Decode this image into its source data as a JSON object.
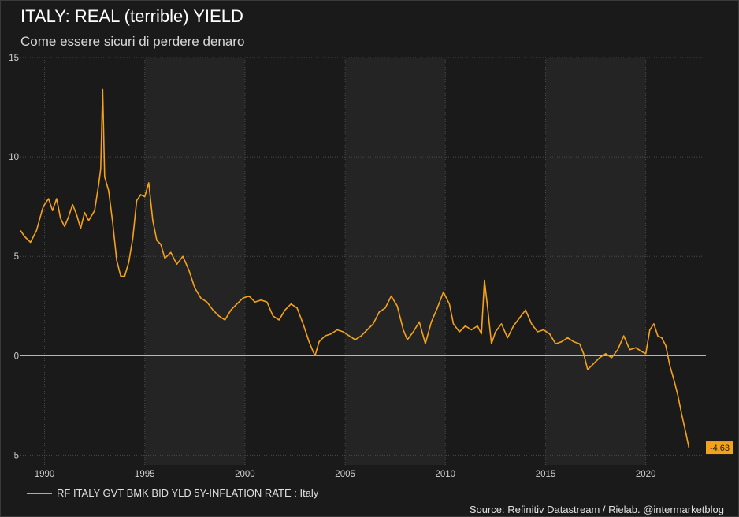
{
  "header": {
    "title": "ITALY: REAL (terrible) YIELD",
    "subtitle": "Come essere sicuri di perdere denaro"
  },
  "legend": {
    "label": "RF ITALY GVT BMK BID YLD 5Y-INFLATION RATE : Italy"
  },
  "footer": {
    "source": "Source: Refinitiv Datastream / Rielab. @intermarketblog"
  },
  "colors": {
    "line": "#f5a21b",
    "zero_line": "#e8e8e8",
    "band": "#242424",
    "background": "#1a1a1a",
    "grid": "#4a4a4a"
  },
  "chart_data": {
    "type": "line",
    "title": "ITALY: REAL (terrible) YIELD",
    "subtitle": "Come essere sicuri di perdere denaro",
    "xlabel": "",
    "ylabel": "",
    "xlim": [
      1988.8,
      2023.0
    ],
    "ylim": [
      -5.5,
      15
    ],
    "x_ticks": [
      1990,
      1995,
      2000,
      2005,
      2010,
      2015,
      2020
    ],
    "y_ticks": [
      -5,
      0,
      5,
      10,
      15
    ],
    "grid": true,
    "legend_position": "bottom-left",
    "last_value_label": "-4.63",
    "series": [
      {
        "name": "RF ITALY GVT BMK BID YLD 5Y-INFLATION RATE : Italy",
        "x": [
          1988.8,
          1989.0,
          1989.3,
          1989.6,
          1989.9,
          1990.0,
          1990.2,
          1990.4,
          1990.6,
          1990.8,
          1991.0,
          1991.2,
          1991.4,
          1991.6,
          1991.8,
          1992.0,
          1992.2,
          1992.5,
          1992.7,
          1992.8,
          1992.9,
          1993.0,
          1993.2,
          1993.4,
          1993.6,
          1993.8,
          1994.0,
          1994.2,
          1994.4,
          1994.6,
          1994.8,
          1995.0,
          1995.2,
          1995.4,
          1995.6,
          1995.8,
          1996.0,
          1996.3,
          1996.6,
          1996.9,
          1997.2,
          1997.5,
          1997.8,
          1998.1,
          1998.4,
          1998.7,
          1999.0,
          1999.3,
          1999.6,
          1999.9,
          2000.2,
          2000.5,
          2000.8,
          2001.1,
          2001.4,
          2001.7,
          2002.0,
          2002.3,
          2002.6,
          2002.9,
          2003.2,
          2003.4,
          2003.5,
          2003.7,
          2004.0,
          2004.3,
          2004.6,
          2004.9,
          2005.2,
          2005.5,
          2005.8,
          2006.1,
          2006.4,
          2006.7,
          2007.0,
          2007.3,
          2007.6,
          2007.9,
          2008.1,
          2008.4,
          2008.7,
          2009.0,
          2009.3,
          2009.6,
          2009.9,
          2010.2,
          2010.4,
          2010.7,
          2011.0,
          2011.3,
          2011.6,
          2011.8,
          2011.95,
          2012.1,
          2012.3,
          2012.5,
          2012.8,
          2013.1,
          2013.4,
          2013.7,
          2014.0,
          2014.3,
          2014.6,
          2014.9,
          2015.2,
          2015.5,
          2015.8,
          2016.1,
          2016.4,
          2016.7,
          2016.9,
          2017.1,
          2017.4,
          2017.7,
          2018.0,
          2018.3,
          2018.6,
          2018.9,
          2019.2,
          2019.5,
          2019.8,
          2020.0,
          2020.2,
          2020.4,
          2020.6,
          2020.8,
          2021.0,
          2021.2,
          2021.4,
          2021.6,
          2021.8,
          2022.0,
          2022.15
        ],
        "values": [
          6.3,
          6.0,
          5.7,
          6.3,
          7.4,
          7.6,
          7.9,
          7.3,
          7.9,
          6.9,
          6.5,
          7.0,
          7.6,
          7.1,
          6.4,
          7.2,
          6.8,
          7.3,
          8.6,
          9.4,
          13.4,
          9.0,
          8.3,
          6.7,
          4.8,
          4.0,
          4.0,
          4.7,
          5.9,
          7.8,
          8.1,
          8.0,
          8.7,
          6.8,
          5.8,
          5.6,
          4.9,
          5.2,
          4.6,
          5.0,
          4.3,
          3.4,
          2.9,
          2.7,
          2.3,
          2.0,
          1.8,
          2.3,
          2.6,
          2.9,
          3.0,
          2.7,
          2.8,
          2.7,
          2.0,
          1.8,
          2.3,
          2.6,
          2.4,
          1.6,
          0.7,
          0.2,
          0.0,
          0.7,
          1.0,
          1.1,
          1.3,
          1.2,
          1.0,
          0.8,
          1.0,
          1.3,
          1.6,
          2.2,
          2.4,
          3.0,
          2.5,
          1.3,
          0.8,
          1.2,
          1.7,
          0.6,
          1.7,
          2.4,
          3.2,
          2.6,
          1.6,
          1.2,
          1.5,
          1.3,
          1.5,
          1.1,
          3.8,
          2.5,
          0.6,
          1.2,
          1.6,
          0.9,
          1.5,
          1.9,
          2.3,
          1.6,
          1.2,
          1.3,
          1.1,
          0.6,
          0.7,
          0.9,
          0.7,
          0.6,
          0.1,
          -0.7,
          -0.4,
          -0.1,
          0.1,
          -0.1,
          0.3,
          1.0,
          0.3,
          0.4,
          0.2,
          0.1,
          1.3,
          1.6,
          1.0,
          0.9,
          0.5,
          -0.5,
          -1.2,
          -2.0,
          -3.0,
          -3.9,
          -4.63
        ]
      }
    ]
  }
}
